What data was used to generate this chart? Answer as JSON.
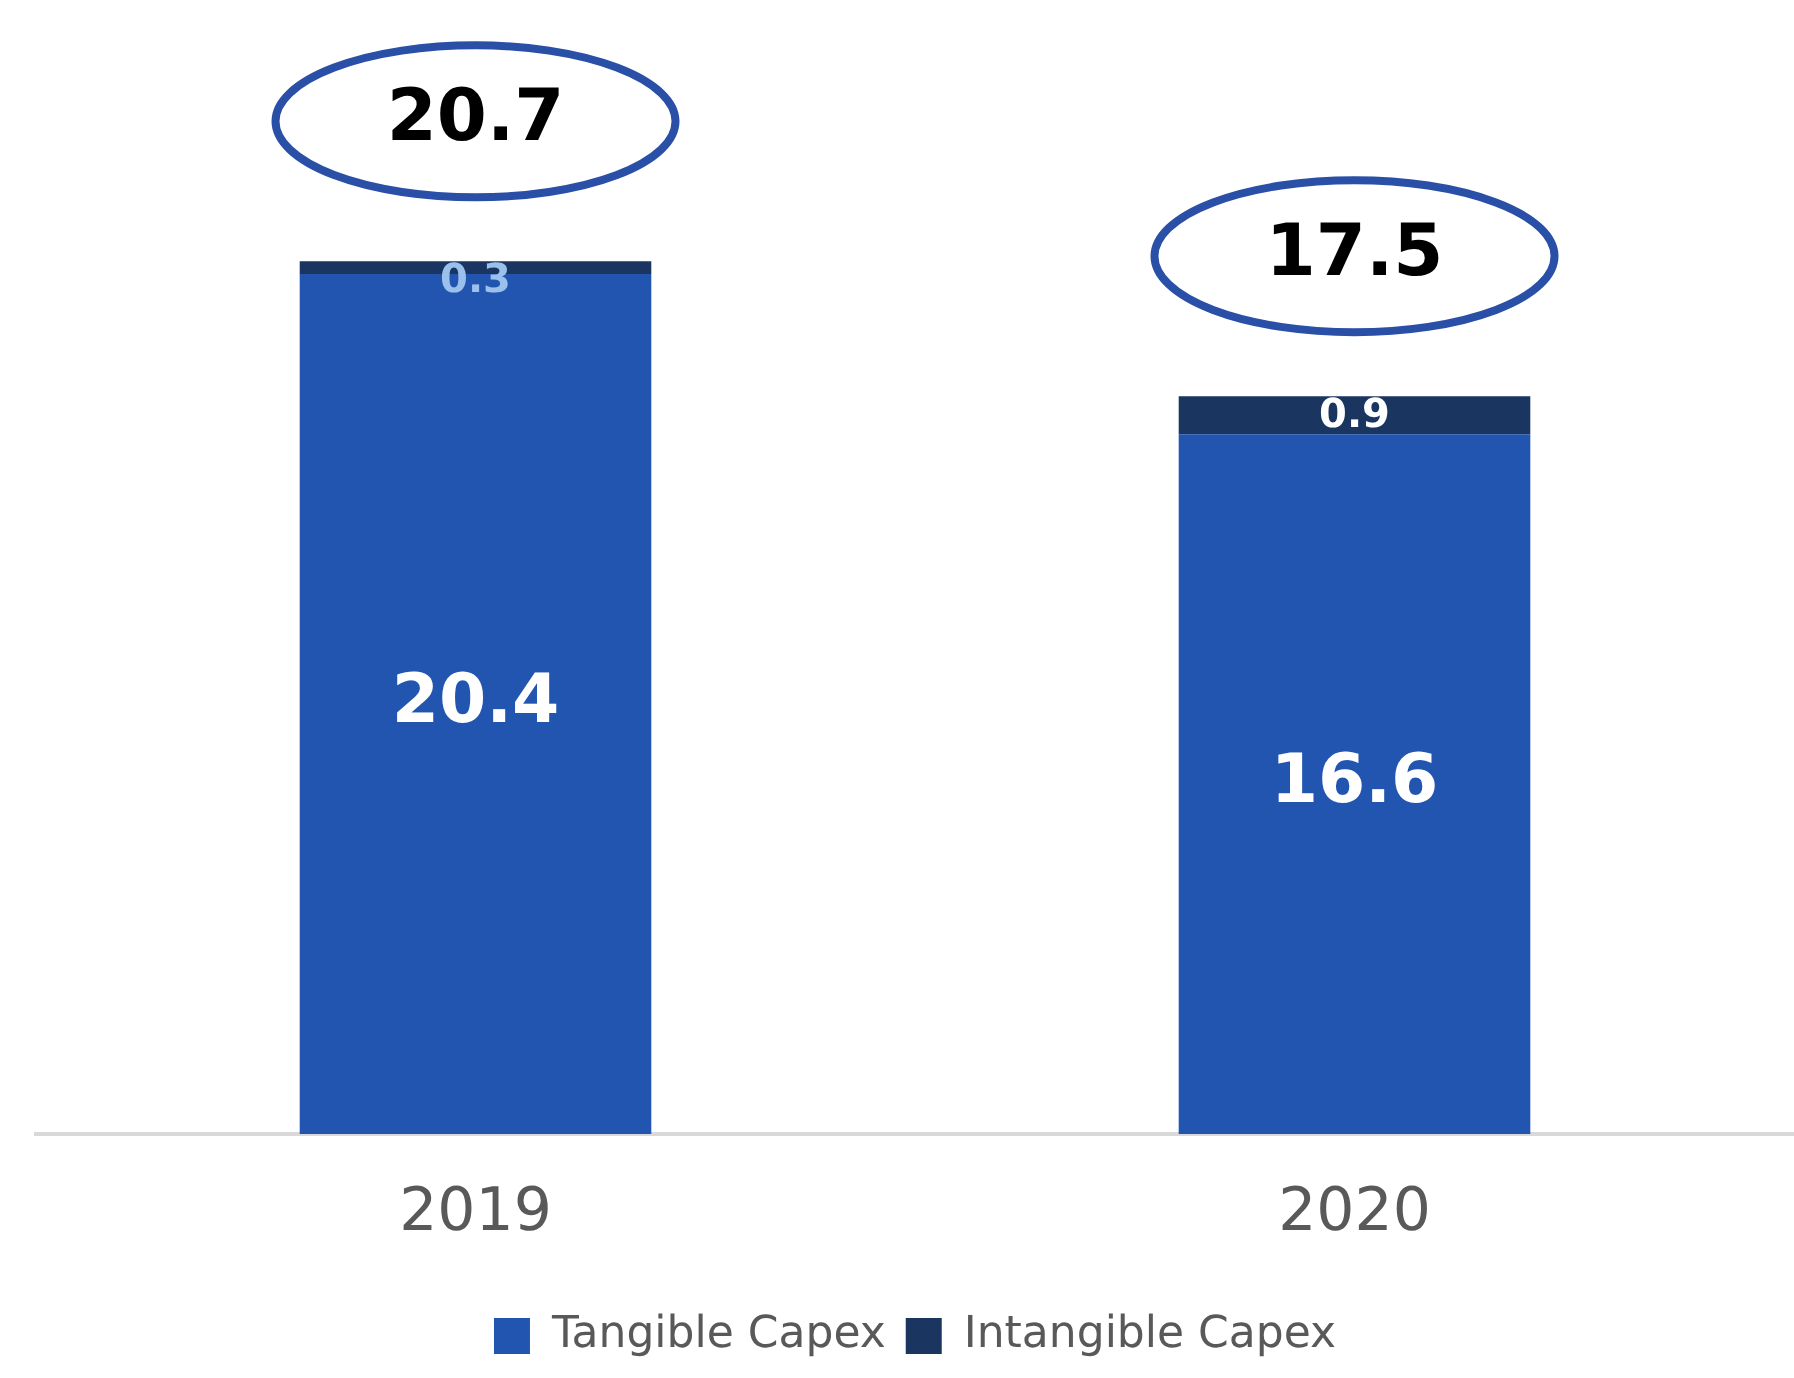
{
  "chart_data": {
    "type": "bar",
    "stacked": true,
    "categories": [
      "2019",
      "2020"
    ],
    "series": [
      {
        "name": "Tangible Capex",
        "color": "#2155b0",
        "values": [
          20.4,
          16.6
        ]
      },
      {
        "name": "Intangible Capex",
        "color": "#1a3560",
        "values": [
          0.3,
          0.9
        ]
      }
    ],
    "data_labels": true,
    "totals": [
      "20.7",
      "17.5"
    ],
    "legend": "bottom",
    "grid": false
  }
}
